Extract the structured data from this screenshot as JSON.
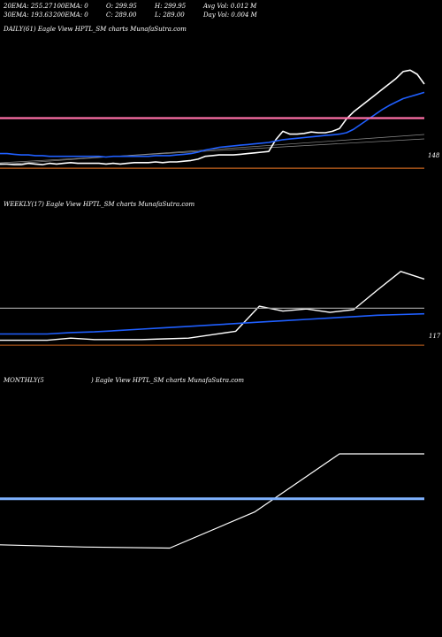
{
  "header": {
    "ema20": "20EMA: 255.27",
    "ema100": "100EMA: 0",
    "open": "O: 299.95",
    "high": "H: 299.95",
    "avg_vol": "Avg Vol: 0.012  M",
    "ema30": "30EMA: 193.63",
    "ema200": "200EMA: 0",
    "close": "C: 289.00",
    "low": "L: 289.00",
    "day_vol": "Day Vol: 0.004  M"
  },
  "panels": {
    "daily": {
      "title": "DAILY(61) Eagle   View  HPTL_SM charts MunafaSutra.com",
      "tick": "148"
    },
    "weekly": {
      "title": "WEEKLY(17) Eagle   View  HPTL_SM charts MunafaSutra.com",
      "tick": "117"
    },
    "monthly": {
      "title_left": "MONTHLY(5",
      "title_right": ") Eagle   View  HPTL_SM charts MunafaSutra.com"
    }
  },
  "colors": {
    "price": "#ffffff",
    "ema_blue": "#1f5fff",
    "pink": "#ff6fa8",
    "orange": "#c8641e",
    "grey": "#9a9a9a",
    "light_blue": "#7fb2ff"
  },
  "chart_data": [
    {
      "type": "line",
      "title": "DAILY(61) Eagle   View  HPTL_SM charts MunafaSutra.com",
      "ylim": [
        100,
        310
      ],
      "y_tick_labels": [
        "148"
      ],
      "series": [
        {
          "values": [
            125,
            125,
            124,
            124,
            126,
            125,
            124,
            126,
            125,
            126,
            127,
            126,
            126,
            126,
            126,
            125,
            126,
            125,
            126,
            127,
            127,
            127,
            128,
            127,
            128,
            128,
            129,
            130,
            132,
            136,
            137,
            138,
            138,
            138,
            139,
            140,
            141,
            142,
            143,
            160,
            172,
            168,
            168,
            169,
            171,
            170,
            170,
            172,
            176,
            190,
            200,
            208,
            216,
            224,
            232,
            240,
            248,
            258,
            260,
            254,
            240
          ]
        },
        {
          "values": [
            140,
            140,
            139,
            138,
            138,
            137,
            137,
            136,
            136,
            136,
            136,
            136,
            136,
            136,
            136,
            135,
            136,
            136,
            136,
            136,
            136,
            136,
            137,
            137,
            137,
            138,
            139,
            140,
            142,
            145,
            147,
            149,
            150,
            151,
            152,
            153,
            154,
            155,
            156,
            158,
            160,
            161,
            162,
            163,
            164,
            165,
            166,
            167,
            168,
            170,
            175,
            182,
            189,
            196,
            203,
            209,
            214,
            219,
            222,
            225,
            228
          ]
        },
        {
          "values": [
            191,
            191,
            191,
            191,
            191,
            191,
            191,
            191,
            191,
            191,
            191,
            191,
            191,
            191,
            191,
            191,
            191,
            191,
            191,
            191,
            191,
            191,
            191,
            191,
            191,
            191,
            191,
            191,
            191,
            191,
            191,
            191,
            191,
            191,
            191,
            191,
            191,
            191,
            191,
            191,
            191,
            191,
            191,
            191,
            191,
            191,
            191,
            191,
            191,
            191,
            191,
            191,
            191,
            191,
            191,
            191,
            191,
            191,
            191,
            191,
            191
          ]
        },
        {
          "values": [
            119,
            119,
            119,
            119,
            119,
            119,
            119,
            119,
            119,
            119,
            119,
            119,
            119,
            119,
            119,
            119,
            119,
            119,
            119,
            119,
            119,
            119,
            119,
            119,
            119,
            119,
            119,
            119,
            119,
            119,
            119,
            119,
            119,
            119,
            119,
            119,
            119,
            119,
            119,
            119,
            119,
            119,
            119,
            119,
            119,
            119,
            119,
            119,
            119,
            119,
            119,
            119,
            119,
            119,
            119,
            119,
            119,
            119,
            119,
            119,
            119
          ]
        }
      ]
    },
    {
      "type": "line",
      "title": "WEEKLY(17) Eagle   View  HPTL_SM charts MunafaSutra.com",
      "ylim": [
        100,
        310
      ],
      "y_tick_labels": [
        "117"
      ],
      "series": [
        {
          "values": [
            126,
            126,
            126,
            129,
            127,
            127,
            127,
            128,
            129,
            134,
            139,
            175,
            168,
            171,
            166,
            170,
            198,
            225,
            214
          ]
        },
        {
          "values": [
            135,
            135,
            135,
            137,
            138,
            140,
            142,
            144,
            146,
            148,
            150,
            152,
            154,
            156,
            158,
            160,
            162,
            163,
            164
          ]
        },
        {
          "values": [
            172,
            172,
            172,
            172,
            172,
            172,
            172,
            172,
            172,
            172,
            172,
            172,
            172,
            172,
            172,
            172,
            172,
            172,
            172
          ]
        },
        {
          "values": [
            119,
            119,
            119,
            119,
            119,
            119,
            119,
            119,
            119,
            119,
            119,
            119,
            119,
            119,
            119,
            119,
            119,
            119,
            119
          ]
        }
      ]
    },
    {
      "type": "line",
      "title": "MONTHLY(5) Eagle   View  HPTL_SM charts MunafaSutra.com",
      "ylim": [
        100,
        310
      ],
      "series": [
        {
          "values": [
            168,
            166,
            165,
            198,
            251,
            251
          ]
        },
        {
          "values": [
            210,
            210,
            210,
            210,
            210,
            210
          ]
        }
      ]
    }
  ]
}
